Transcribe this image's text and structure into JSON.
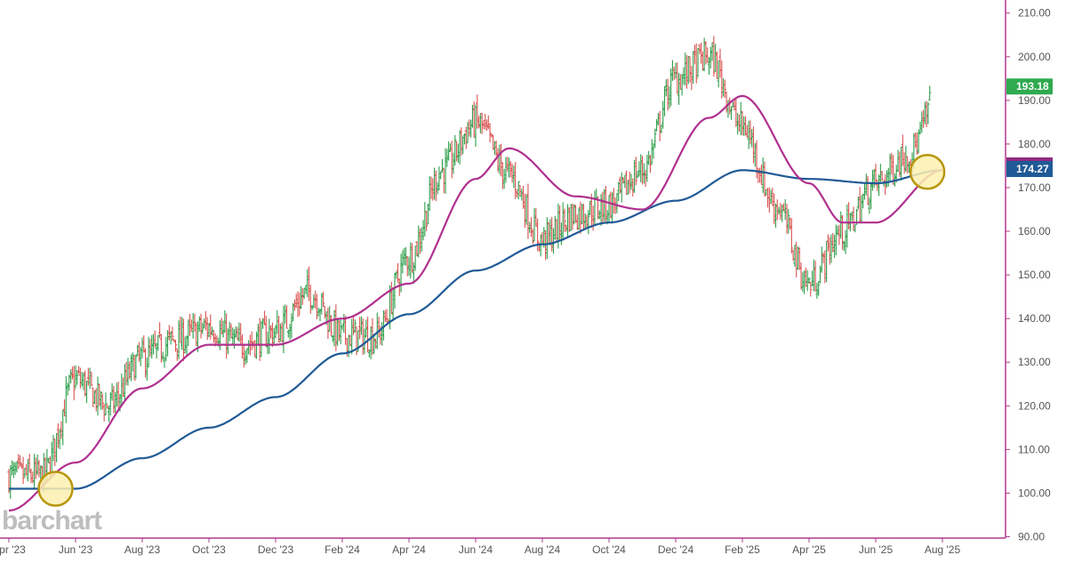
{
  "watermark": "barchart",
  "colors": {
    "axis": "#b03a8e",
    "up_bar": "#2e9e4a",
    "down_bar": "#d9534f",
    "ma_fast": "#b0308f",
    "ma_slow": "#1f5a96",
    "last_price_bg": "#2faa4f",
    "ma_fast_tag_bg": "#8e2a82",
    "ma_slow_tag_bg": "#1f5a96",
    "cross_marker_fill": "#fdf0b0",
    "cross_marker_stroke": "#b8960c"
  },
  "chart_data": {
    "type": "ohlc",
    "ylim": [
      85,
      213
    ],
    "y_ticks": [
      "210.00",
      "200.00",
      "190.00",
      "180.00",
      "170.00",
      "160.00",
      "150.00",
      "140.00",
      "130.00",
      "120.00",
      "110.00",
      "100.00",
      "90.00"
    ],
    "x_ticks": [
      "Apr '23",
      "Jun '23",
      "Aug '23",
      "Oct '23",
      "Dec '23",
      "Feb '24",
      "Apr '24",
      "Jun '24",
      "Aug '24",
      "Oct '24",
      "Dec '24",
      "Feb '25",
      "Apr '25",
      "Jun '25",
      "Aug '25"
    ],
    "price_labels": {
      "last": "193.18",
      "moving_average": "174.27"
    },
    "crossover_markers": [
      "Jun '23",
      "Jul '25"
    ],
    "price_path": [
      [
        "Apr '23",
        104
      ],
      [
        "May '23",
        104
      ],
      [
        "Jun '23",
        126
      ],
      [
        "Jul '23",
        120
      ],
      [
        "Aug '23",
        131
      ],
      [
        "Sep '23",
        135
      ],
      [
        "Oct '23",
        138
      ],
      [
        "Nov '23",
        134
      ],
      [
        "Dec '23",
        137
      ],
      [
        "Jan '24",
        146
      ],
      [
        "Feb '24",
        136
      ],
      [
        "Mar '24",
        136
      ],
      [
        "Apr '24",
        154
      ],
      [
        "May '24",
        174
      ],
      [
        "Jun '24",
        185
      ],
      [
        "Jul '24",
        173
      ],
      [
        "Aug '24",
        158
      ],
      [
        "Sep '24",
        164
      ],
      [
        "Oct '24",
        166
      ],
      [
        "Nov '24",
        174
      ],
      [
        "Dec '24",
        195
      ],
      [
        "Jan '25",
        200
      ],
      [
        "Feb '25",
        184
      ],
      [
        "Mar '25",
        166
      ],
      [
        "Apr '25",
        148
      ],
      [
        "May '25",
        160
      ],
      [
        "Jun '25",
        171
      ],
      [
        "Jul '25",
        178
      ],
      [
        "Aug '25",
        194
      ]
    ],
    "ma_fast": [
      [
        "Apr '23",
        96
      ],
      [
        "Jun '23",
        107
      ],
      [
        "Aug '23",
        124
      ],
      [
        "Oct '23",
        134
      ],
      [
        "Dec '23",
        134
      ],
      [
        "Feb '24",
        140
      ],
      [
        "Apr '24",
        148
      ],
      [
        "Jun '24",
        172
      ],
      [
        "Jul '24",
        179
      ],
      [
        "Sep '24",
        168
      ],
      [
        "Nov '24",
        165
      ],
      [
        "Jan '25",
        186
      ],
      [
        "Feb '25",
        191
      ],
      [
        "Apr '25",
        171
      ],
      [
        "May '25",
        162
      ],
      [
        "Jun '25",
        162
      ],
      [
        "Aug '25",
        174
      ]
    ],
    "ma_slow": [
      [
        "Apr '23",
        101
      ],
      [
        "Jun '23",
        101
      ],
      [
        "Aug '23",
        108
      ],
      [
        "Oct '23",
        115
      ],
      [
        "Dec '23",
        122
      ],
      [
        "Feb '24",
        132
      ],
      [
        "Apr '24",
        141
      ],
      [
        "Jun '24",
        151
      ],
      [
        "Aug '24",
        157
      ],
      [
        "Oct '24",
        162
      ],
      [
        "Dec '24",
        167
      ],
      [
        "Feb '25",
        174
      ],
      [
        "Apr '25",
        172
      ],
      [
        "Jun '25",
        171
      ],
      [
        "Aug '25",
        174
      ]
    ]
  }
}
